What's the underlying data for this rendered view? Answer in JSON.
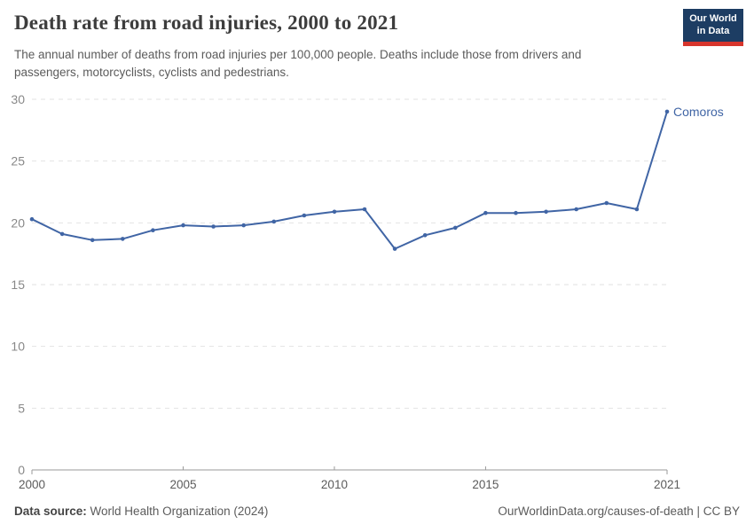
{
  "header": {
    "title": "Death rate from road injuries, 2000 to 2021",
    "subtitle": "The annual number of deaths from road injuries per 100,000 people. Deaths include those from drivers and passengers, motorcyclists, cyclists and pedestrians.",
    "logo": {
      "line1": "Our World",
      "line2": "in Data"
    }
  },
  "chart_data": {
    "type": "line",
    "title": "Death rate from road injuries, 2000 to 2021",
    "x": [
      2000,
      2001,
      2002,
      2003,
      2004,
      2005,
      2006,
      2007,
      2008,
      2009,
      2010,
      2011,
      2012,
      2013,
      2014,
      2015,
      2016,
      2017,
      2018,
      2019,
      2020,
      2021
    ],
    "series": [
      {
        "name": "Comoros",
        "values": [
          20.3,
          19.1,
          18.6,
          18.7,
          19.4,
          19.8,
          19.7,
          19.8,
          20.1,
          20.6,
          20.9,
          21.1,
          17.9,
          19.0,
          19.6,
          20.8,
          20.8,
          20.9,
          21.1,
          21.6,
          21.1,
          29.0
        ]
      }
    ],
    "xlabel": "",
    "ylabel": "",
    "xlim": [
      2000,
      2021
    ],
    "ylim": [
      0,
      30
    ],
    "xticks": [
      2000,
      2005,
      2010,
      2015,
      2021
    ],
    "yticks": [
      0,
      5,
      10,
      15,
      20,
      25,
      30
    ],
    "grid": "horizontal dashed",
    "legend": "inline end-of-line label",
    "marker": "point"
  },
  "footer": {
    "source_label": "Data source:",
    "source_value": "World Health Organization (2024)",
    "link": "OurWorldinData.org/causes-of-death | CC BY"
  },
  "colors": {
    "line": "#4065A5",
    "entity_label": "#4065A5",
    "logo_bg": "#1d3d63",
    "logo_bar": "#d7352c",
    "grid": "#e2e2e2",
    "axis": "#9a9a9a",
    "title_text": "#3d3d3d",
    "muted_text": "#5b5b5b",
    "ytick_text": "#888888"
  }
}
